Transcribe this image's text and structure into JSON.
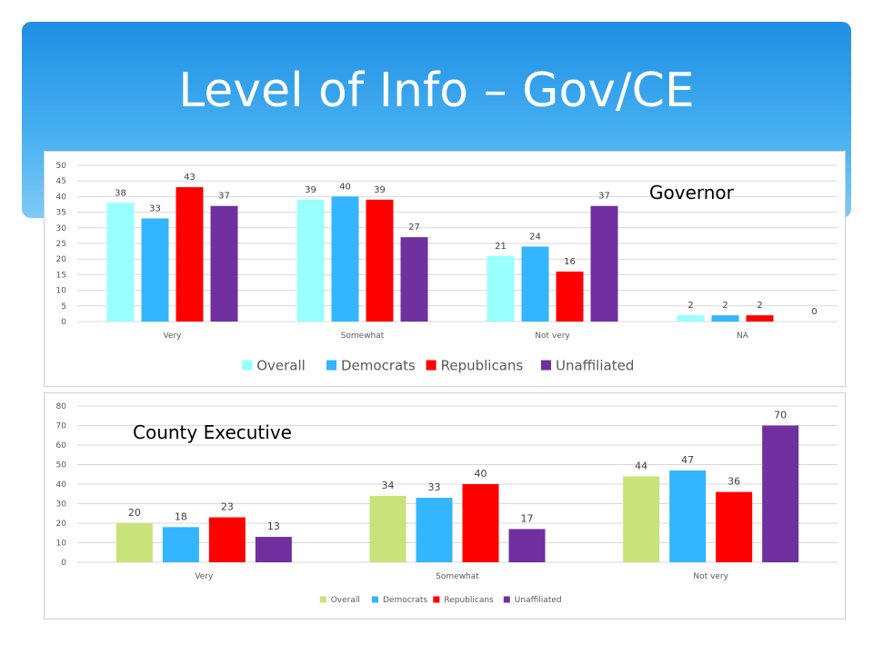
{
  "page": {
    "title": "Level of Info – Gov/CE"
  },
  "chart_data": [
    {
      "type": "bar",
      "annotation": "Governor",
      "categories": [
        "Very",
        "Somewhat",
        "Not very",
        "NA"
      ],
      "ylim": [
        0,
        50
      ],
      "yticks": [
        0,
        5,
        10,
        15,
        20,
        25,
        30,
        35,
        40,
        45,
        50
      ],
      "grid": true,
      "legend_position": "bottom",
      "series": [
        {
          "name": "Overall",
          "color": "#99ffff",
          "values": [
            38,
            39,
            21,
            2
          ]
        },
        {
          "name": "Democrats",
          "color": "#33b5ff",
          "values": [
            33,
            40,
            24,
            2
          ]
        },
        {
          "name": "Republicans",
          "color": "#ff0000",
          "values": [
            43,
            39,
            16,
            2
          ]
        },
        {
          "name": "Unaffiliated",
          "color": "#7030a0",
          "values": [
            37,
            27,
            37,
            0
          ]
        }
      ]
    },
    {
      "type": "bar",
      "annotation": "County Executive",
      "categories": [
        "Very",
        "Somewhat",
        "Not very"
      ],
      "ylim": [
        0,
        80
      ],
      "yticks": [
        0,
        10,
        20,
        30,
        40,
        50,
        60,
        70,
        80
      ],
      "grid": true,
      "legend_position": "bottom",
      "series": [
        {
          "name": "Overall",
          "color": "#c9e27a",
          "values": [
            20,
            34,
            44
          ]
        },
        {
          "name": "Democrats",
          "color": "#33b5ff",
          "values": [
            18,
            33,
            47
          ]
        },
        {
          "name": "Republicans",
          "color": "#ff0000",
          "values": [
            23,
            40,
            36
          ]
        },
        {
          "name": "Unaffiliated",
          "color": "#7030a0",
          "values": [
            13,
            17,
            70
          ]
        }
      ]
    }
  ]
}
